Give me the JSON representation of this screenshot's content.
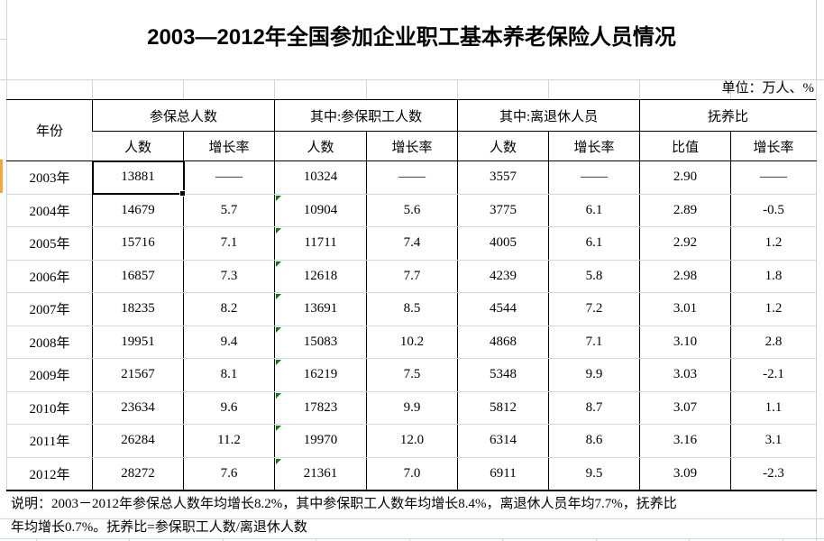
{
  "title": "2003—2012年全国参加企业职工基本养老保险人员情况",
  "unit_label": "单位：万人、%",
  "table": {
    "corner_header": "年份",
    "groups": [
      {
        "label": "参保总人数",
        "align": "center"
      },
      {
        "label": "其中:参保职工人数",
        "align": "left"
      },
      {
        "label": "其中:离退休人员",
        "align": "left"
      },
      {
        "label": "抚养比",
        "align": "center"
      }
    ],
    "subheaders": [
      "人数",
      "增长率",
      "人数",
      "增长率",
      "人数",
      "增长率",
      "比值",
      "增长率"
    ],
    "rows": [
      {
        "year": "2003年",
        "cells": [
          "13881",
          "——",
          "10324",
          "——",
          "3557",
          "——",
          "2.90",
          "——"
        ]
      },
      {
        "year": "2004年",
        "cells": [
          "14679",
          "5.7",
          "10904",
          "5.6",
          "3775",
          "6.1",
          "2.89",
          "-0.5"
        ]
      },
      {
        "year": "2005年",
        "cells": [
          "15716",
          "7.1",
          "11711",
          "7.4",
          "4005",
          "6.1",
          "2.92",
          "1.2"
        ]
      },
      {
        "year": "2006年",
        "cells": [
          "16857",
          "7.3",
          "12618",
          "7.7",
          "4239",
          "5.8",
          "2.98",
          "1.8"
        ]
      },
      {
        "year": "2007年",
        "cells": [
          "18235",
          "8.2",
          "13691",
          "8.5",
          "4544",
          "7.2",
          "3.01",
          "1.2"
        ]
      },
      {
        "year": "2008年",
        "cells": [
          "19951",
          "9.4",
          "15083",
          "10.2",
          "4868",
          "7.1",
          "3.10",
          "2.8"
        ]
      },
      {
        "year": "2009年",
        "cells": [
          "21567",
          "8.1",
          "16219",
          "7.5",
          "5348",
          "9.9",
          "3.03",
          "-2.1"
        ]
      },
      {
        "year": "2010年",
        "cells": [
          "23634",
          "9.6",
          "17823",
          "9.9",
          "5812",
          "8.7",
          "3.07",
          "1.1"
        ]
      },
      {
        "year": "2011年",
        "cells": [
          "26284",
          "11.2",
          "19970",
          "12.0",
          "6314",
          "8.6",
          "3.16",
          "3.1"
        ]
      },
      {
        "year": "2012年",
        "cells": [
          "28272",
          "7.6",
          "21361",
          "7.0",
          "6911",
          "9.5",
          "3.09",
          "-2.3"
        ]
      }
    ],
    "selected_cell": {
      "row": 0,
      "col": 0
    },
    "error_marker": {
      "rows": [
        1,
        2,
        3,
        4,
        5,
        6,
        7,
        8,
        9
      ],
      "col": 2
    }
  },
  "note": {
    "line1": "说明：2003－2012年参保总人数年均增长8.2%，其中参保职工人数年均增长8.4%，离退休人员年均7.7%，抚养比",
    "line2": "年均增长0.7%。抚养比=参保职工人数/离退休人数"
  },
  "colors": {
    "grid_line": "#cdd6e4",
    "border": "#000000",
    "error_indicator": "#0a7a0a",
    "row_accent": "#f6a63b",
    "background": "#ffffff",
    "text": "#000000"
  }
}
